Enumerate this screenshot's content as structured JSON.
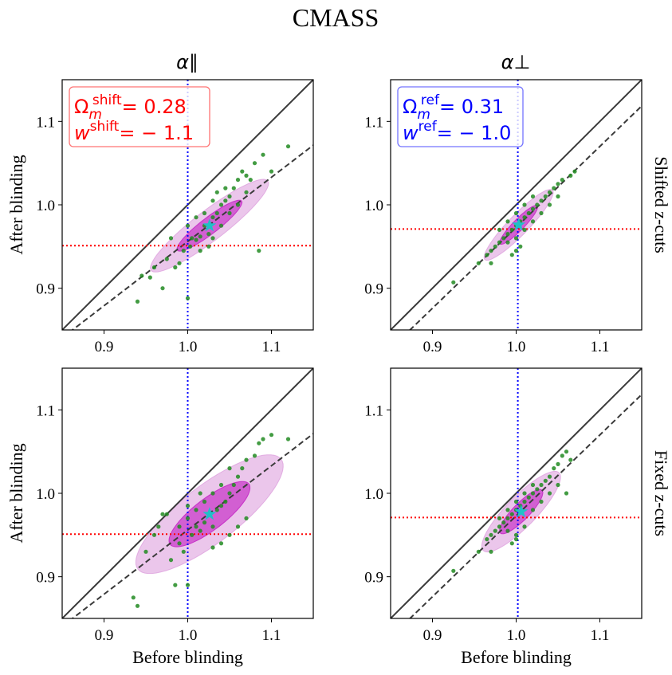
{
  "figure": {
    "title": "CMASS",
    "column_titles": [
      "α∥",
      "α⊥"
    ],
    "row_labels": [
      "Shifted z-cuts",
      "Fixed z-cuts"
    ],
    "xlabel": "Before blinding",
    "ylabel": "After blinding"
  },
  "colors": {
    "points": "#228B22",
    "ellipse_outer": "#dda0dd",
    "ellipse_inner": "#c21bc2",
    "star": "#20c0c8",
    "hline": "#ff0000",
    "vline": "#0000ff",
    "diagonal": "#3a3a3a",
    "legend_shift": "#ff0000",
    "legend_ref": "#0000ff"
  },
  "legends": {
    "shift": {
      "omega_sym": "Ω",
      "omega_sub": "m",
      "omega_sup": "shift",
      "omega_val": "= 0.28",
      "w_sym": "w",
      "w_sup": "shift",
      "w_val": "= − 1.1"
    },
    "ref": {
      "omega_sym": "Ω",
      "omega_sub": "m",
      "omega_sup": "ref",
      "omega_val": "= 0.31",
      "w_sym": "w",
      "w_sup": "ref",
      "w_val": "= − 1.0"
    }
  },
  "chart_data": [
    {
      "type": "scatter",
      "panel": "alpha_parallel_shifted",
      "xlabel": "",
      "ylabel": "After blinding",
      "xlim": [
        0.85,
        1.15
      ],
      "ylim": [
        0.85,
        1.15
      ],
      "xticks": [
        0.9,
        1.0,
        1.1
      ],
      "yticks": [
        0.9,
        1.0,
        1.1
      ],
      "vline": 1.0,
      "hline": 0.951,
      "fit_line": {
        "slope": 0.77,
        "intercept": 0.186
      },
      "ellipse": {
        "center": [
          1.026,
          0.975
        ],
        "semi_major": 0.088,
        "semi_minor": 0.018,
        "angle_deg": 37.6
      },
      "star": [
        1.026,
        0.975
      ],
      "legend": "shift",
      "points": [
        [
          0.94,
          0.884
        ],
        [
          0.945,
          0.915
        ],
        [
          0.955,
          0.913
        ],
        [
          0.97,
          0.9
        ],
        [
          0.975,
          0.935
        ],
        [
          0.985,
          0.925
        ],
        [
          0.99,
          0.93
        ],
        [
          0.995,
          0.945
        ],
        [
          1.0,
          0.888
        ],
        [
          1.003,
          0.95
        ],
        [
          1.005,
          0.96
        ],
        [
          1.01,
          0.958
        ],
        [
          1.015,
          0.962
        ],
        [
          1.02,
          0.975
        ],
        [
          1.025,
          0.965
        ],
        [
          1.03,
          0.985
        ],
        [
          1.035,
          0.99
        ],
        [
          1.04,
          1.0
        ],
        [
          1.045,
          1.005
        ],
        [
          1.05,
          1.01
        ],
        [
          1.055,
          1.02
        ],
        [
          1.06,
          1.03
        ],
        [
          1.065,
          1.04
        ],
        [
          1.07,
          1.035
        ],
        [
          1.08,
          1.05
        ],
        [
          1.085,
          0.945
        ],
        [
          1.09,
          1.06
        ],
        [
          1.1,
          1.04
        ],
        [
          1.12,
          1.07
        ],
        [
          0.96,
          0.925
        ],
        [
          1.015,
          0.945
        ],
        [
          1.025,
          0.95
        ],
        [
          1.03,
          0.96
        ],
        [
          1.04,
          0.975
        ],
        [
          1.05,
          0.99
        ],
        [
          1.06,
          1.0
        ],
        [
          0.98,
          0.96
        ],
        [
          1.0,
          0.975
        ],
        [
          1.01,
          0.985
        ],
        [
          1.02,
          0.99
        ],
        [
          1.03,
          1.005
        ],
        [
          1.035,
          1.015
        ],
        [
          1.045,
          1.02
        ],
        [
          1.07,
          1.015
        ],
        [
          1.075,
          1.03
        ]
      ]
    },
    {
      "type": "scatter",
      "panel": "alpha_perp_shifted",
      "xlabel": "",
      "ylabel": "",
      "xlim": [
        0.85,
        1.15
      ],
      "ylim": [
        0.85,
        1.15
      ],
      "xticks": [
        0.9,
        1.0,
        1.1
      ],
      "yticks": [
        0.9,
        1.0,
        1.1
      ],
      "vline": 1.002,
      "hline": 0.971,
      "fit_line": {
        "slope": 0.97,
        "intercept": 0.003
      },
      "ellipse": {
        "center": [
          1.003,
          0.976
        ],
        "semi_major": 0.058,
        "semi_minor": 0.012,
        "angle_deg": 45.9
      },
      "star": [
        1.003,
        0.976
      ],
      "legend": "ref",
      "points": [
        [
          0.925,
          0.907
        ],
        [
          0.955,
          0.93
        ],
        [
          0.965,
          0.94
        ],
        [
          0.97,
          0.945
        ],
        [
          0.975,
          0.95
        ],
        [
          0.98,
          0.955
        ],
        [
          0.985,
          0.96
        ],
        [
          0.99,
          0.965
        ],
        [
          0.995,
          0.97
        ],
        [
          1.0,
          0.975
        ],
        [
          1.005,
          0.98
        ],
        [
          1.01,
          0.985
        ],
        [
          1.015,
          0.99
        ],
        [
          1.02,
          0.995
        ],
        [
          1.025,
          1.0
        ],
        [
          1.03,
          1.005
        ],
        [
          1.035,
          1.01
        ],
        [
          1.04,
          1.015
        ],
        [
          1.045,
          1.02
        ],
        [
          1.05,
          1.025
        ],
        [
          1.055,
          1.03
        ],
        [
          1.065,
          1.035
        ],
        [
          1.07,
          1.04
        ],
        [
          0.99,
          0.955
        ],
        [
          1.0,
          0.96
        ],
        [
          1.01,
          0.97
        ],
        [
          1.02,
          0.98
        ],
        [
          1.03,
          0.99
        ],
        [
          0.98,
          0.97
        ],
        [
          0.99,
          0.98
        ],
        [
          1.0,
          0.99
        ],
        [
          1.01,
          1.0
        ],
        [
          1.02,
          1.01
        ],
        [
          1.0,
          0.945
        ],
        [
          1.005,
          0.95
        ],
        [
          0.995,
          0.94
        ],
        [
          0.97,
          0.93
        ],
        [
          1.04,
          1.0
        ],
        [
          1.05,
          1.01
        ]
      ]
    },
    {
      "type": "scatter",
      "panel": "alpha_parallel_fixed",
      "xlabel": "Before blinding",
      "ylabel": "After blinding",
      "xlim": [
        0.85,
        1.15
      ],
      "ylim": [
        0.85,
        1.15
      ],
      "xticks": [
        0.9,
        1.0,
        1.1
      ],
      "yticks": [
        0.9,
        1.0,
        1.1
      ],
      "vline": 1.0,
      "hline": 0.951,
      "fit_line": {
        "slope": 0.77,
        "intercept": 0.186
      },
      "ellipse": {
        "center": [
          1.026,
          0.975
        ],
        "semi_major": 0.108,
        "semi_minor": 0.034,
        "angle_deg": 37.6
      },
      "star": [
        1.026,
        0.975
      ],
      "legend": null,
      "points": [
        [
          0.935,
          0.875
        ],
        [
          0.94,
          0.865
        ],
        [
          0.95,
          0.93
        ],
        [
          0.96,
          0.95
        ],
        [
          0.965,
          0.96
        ],
        [
          0.97,
          0.975
        ],
        [
          0.975,
          0.975
        ],
        [
          0.98,
          0.92
        ],
        [
          0.985,
          0.89
        ],
        [
          0.99,
          0.94
        ],
        [
          0.995,
          0.93
        ],
        [
          1.0,
          0.89
        ],
        [
          1.005,
          0.95
        ],
        [
          1.01,
          0.96
        ],
        [
          1.015,
          0.955
        ],
        [
          1.02,
          0.965
        ],
        [
          1.025,
          0.975
        ],
        [
          1.03,
          0.96
        ],
        [
          1.035,
          0.98
        ],
        [
          1.04,
          0.985
        ],
        [
          1.045,
          0.99
        ],
        [
          1.05,
          1.0
        ],
        [
          1.055,
          1.01
        ],
        [
          1.06,
          1.02
        ],
        [
          1.065,
          1.03
        ],
        [
          1.07,
          1.04
        ],
        [
          1.08,
          1.045
        ],
        [
          1.085,
          1.06
        ],
        [
          1.09,
          1.065
        ],
        [
          1.1,
          1.07
        ],
        [
          1.12,
          1.065
        ],
        [
          1.03,
          0.935
        ],
        [
          1.04,
          0.94
        ],
        [
          1.05,
          0.95
        ],
        [
          1.06,
          0.96
        ],
        [
          1.07,
          0.97
        ],
        [
          1.0,
          0.97
        ],
        [
          1.01,
          0.98
        ],
        [
          1.02,
          0.99
        ],
        [
          1.03,
          1.0
        ],
        [
          1.04,
          1.01
        ],
        [
          0.99,
          0.96
        ],
        [
          1.0,
          0.985
        ],
        [
          1.015,
          1.0
        ],
        [
          1.05,
          1.03
        ]
      ]
    },
    {
      "type": "scatter",
      "panel": "alpha_perp_fixed",
      "xlabel": "Before blinding",
      "ylabel": "",
      "xlim": [
        0.85,
        1.15
      ],
      "ylim": [
        0.85,
        1.15
      ],
      "xticks": [
        0.9,
        1.0,
        1.1
      ],
      "yticks": [
        0.9,
        1.0,
        1.1
      ],
      "vline": 1.002,
      "hline": 0.971,
      "fit_line": {
        "slope": 0.97,
        "intercept": 0.003
      },
      "ellipse": {
        "center": [
          1.006,
          0.978
        ],
        "semi_major": 0.065,
        "semi_minor": 0.018,
        "angle_deg": 45.9
      },
      "star": [
        1.006,
        0.978
      ],
      "legend": null,
      "points": [
        [
          0.925,
          0.907
        ],
        [
          0.955,
          0.93
        ],
        [
          0.965,
          0.945
        ],
        [
          0.97,
          0.95
        ],
        [
          0.975,
          0.955
        ],
        [
          0.98,
          0.96
        ],
        [
          0.985,
          0.965
        ],
        [
          0.99,
          0.97
        ],
        [
          0.995,
          0.975
        ],
        [
          1.0,
          0.98
        ],
        [
          1.005,
          0.985
        ],
        [
          1.01,
          0.99
        ],
        [
          1.015,
          0.995
        ],
        [
          1.02,
          1.0
        ],
        [
          1.025,
          1.005
        ],
        [
          1.03,
          1.01
        ],
        [
          1.035,
          1.015
        ],
        [
          1.04,
          1.02
        ],
        [
          1.045,
          1.03
        ],
        [
          1.05,
          1.035
        ],
        [
          1.055,
          1.045
        ],
        [
          1.06,
          1.05
        ],
        [
          1.065,
          1.04
        ],
        [
          0.99,
          0.955
        ],
        [
          1.0,
          0.95
        ],
        [
          1.01,
          0.96
        ],
        [
          1.02,
          0.98
        ],
        [
          1.03,
          0.99
        ],
        [
          0.98,
          0.97
        ],
        [
          0.99,
          0.98
        ],
        [
          1.0,
          0.99
        ],
        [
          1.01,
          1.0
        ],
        [
          1.02,
          1.01
        ],
        [
          1.0,
          0.945
        ],
        [
          0.995,
          0.94
        ],
        [
          0.97,
          0.93
        ],
        [
          1.04,
          1.0
        ],
        [
          1.05,
          1.01
        ],
        [
          1.06,
          1.0
        ]
      ]
    }
  ]
}
